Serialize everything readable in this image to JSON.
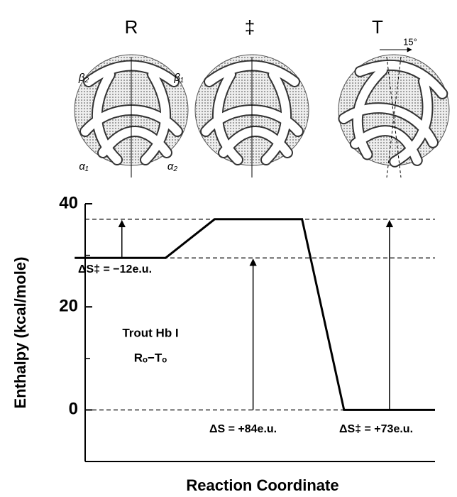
{
  "chart_data": {
    "type": "line",
    "structure_labels": [
      "R",
      "‡",
      "T"
    ],
    "subunit_labels": [
      "β₂",
      "β₁",
      "α₁",
      "α₂"
    ],
    "rotation_label": "15°",
    "ylabel": "Enthalpy (kcal/mole)",
    "xlabel": "Reaction Coordinate",
    "x": [
      -3,
      23,
      37,
      62,
      74,
      100
    ],
    "series": [
      {
        "color": "#000000",
        "values": [
          29.5,
          29.5,
          37,
          37,
          0,
          0
        ]
      }
    ],
    "xlim": [
      0,
      100
    ],
    "ylim": [
      -10,
      40
    ],
    "yticks": [
      0,
      20,
      40
    ],
    "yminor_ticks": [
      10,
      30
    ],
    "reference_levels": [
      37,
      29.5,
      0
    ],
    "annotations": [
      {
        "text": "ΔS‡ = −12e.u.",
        "x": 10.5,
        "from": 29.5,
        "to": 37
      },
      {
        "text": "ΔS = +84e.u.",
        "x": 48,
        "from": 0,
        "to": 29.5
      },
      {
        "text": "ΔS‡ = +73e.u.",
        "x": 87,
        "from": 0,
        "to": 37
      }
    ],
    "notes": [
      "Trout Hb I",
      "Rₒ−Tₒ"
    ]
  }
}
